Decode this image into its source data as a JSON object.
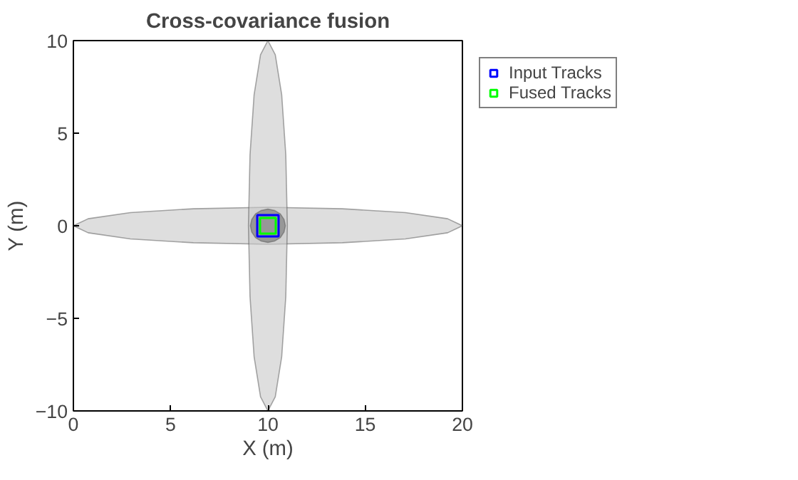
{
  "chart_data": {
    "type": "scatter",
    "title": "Cross-covariance fusion",
    "xlabel": "X (m)",
    "ylabel": "Y (m)",
    "xlim": [
      0,
      20
    ],
    "ylim": [
      -10,
      10
    ],
    "xticks": [
      0,
      5,
      10,
      15,
      20
    ],
    "yticks": [
      -10,
      -5,
      0,
      5,
      10
    ],
    "legend": "top right",
    "series": [
      {
        "type": "area",
        "color": "#c8c8c8",
        "x": [
          20,
          19.24,
          17.07,
          13.83,
          10,
          6.17,
          2.93,
          0.76,
          0,
          0.76,
          2.93,
          6.17,
          10,
          13.83,
          17.07,
          19.24
        ],
        "values": [
          0,
          0.38,
          0.71,
          0.92,
          1,
          0.92,
          0.71,
          0.38,
          0,
          -0.38,
          -0.71,
          -0.92,
          -1,
          -0.92,
          -0.71,
          -0.38
        ]
      },
      {
        "type": "area",
        "color": "#c8c8c8",
        "x": [
          11,
          10.92,
          10.71,
          10.38,
          10,
          9.62,
          9.29,
          9.08,
          9,
          9.08,
          9.29,
          9.62,
          10,
          10.38,
          10.71,
          10.92
        ],
        "values": [
          0,
          3.83,
          7.07,
          9.24,
          10,
          9.24,
          7.07,
          3.83,
          0,
          -3.83,
          -7.07,
          -9.24,
          -10,
          -9.24,
          -7.07,
          -3.83
        ]
      },
      {
        "type": "area",
        "color": "#707070",
        "x": [
          10.9,
          10.83,
          10.64,
          10.34,
          10,
          9.66,
          9.36,
          9.17,
          9.1,
          9.17,
          9.36,
          9.66,
          10,
          10.34,
          10.64,
          10.83
        ],
        "values": [
          0,
          0.34,
          0.64,
          0.83,
          0.9,
          0.83,
          0.64,
          0.34,
          0,
          -0.34,
          -0.64,
          -0.83,
          -0.9,
          -0.83,
          -0.64,
          -0.34
        ]
      },
      {
        "name": "Input Tracks",
        "color": "#0000ff",
        "marker": "square",
        "x": [
          10
        ],
        "values": [
          0
        ]
      },
      {
        "name": "Fused Tracks",
        "color": "#00ff00",
        "marker": "square",
        "x": [
          10
        ],
        "values": [
          0
        ]
      }
    ]
  }
}
